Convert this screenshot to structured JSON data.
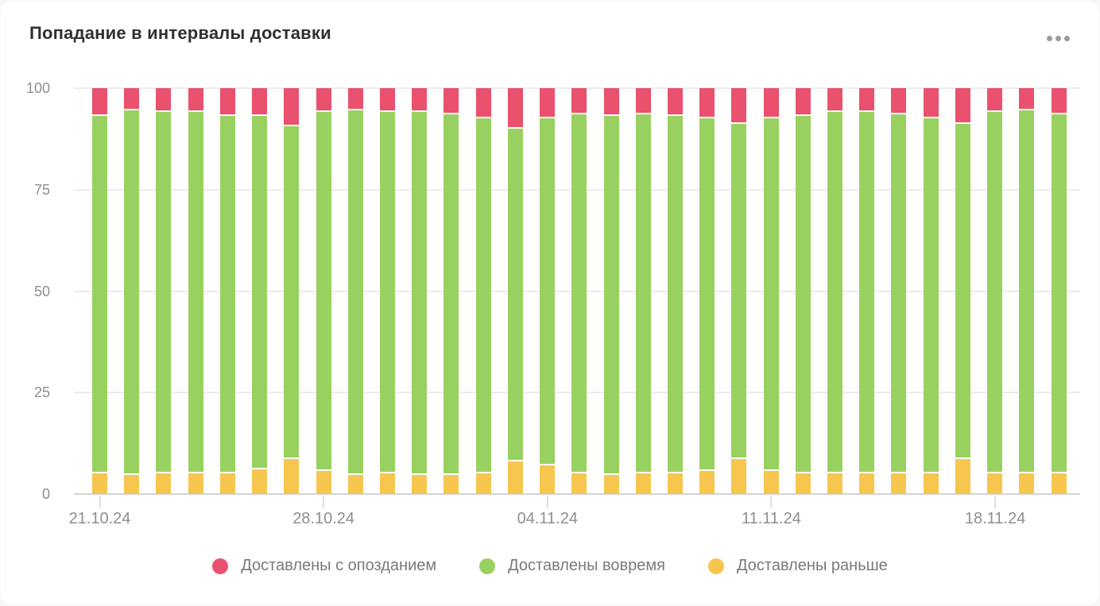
{
  "card": {
    "title": "Попадание в интервалы доставки"
  },
  "menu": {
    "icon": "ellipsis-menu-icon"
  },
  "colors": {
    "late": "#e9516f",
    "on_time": "#99d160",
    "early": "#f6c64f",
    "grid": "#ebebeb",
    "axis_line": "#d5d5d5",
    "axis_text": "#8e8e8e",
    "legend_text": "#7a7a7a",
    "title_text": "#303030",
    "card_bg": "#ffffff",
    "page_bg": "#f7f7f7"
  },
  "legend": [
    {
      "label": "Доставлены с опозданием",
      "color": "#e9516f",
      "series_key": "late"
    },
    {
      "label": "Доставлены вовремя",
      "color": "#99d160",
      "series_key": "on_time"
    },
    {
      "label": "Доставлены раньше",
      "color": "#f6c64f",
      "series_key": "early"
    }
  ],
  "chart_data": {
    "type": "bar",
    "stacked": true,
    "title": "Попадание в интервалы доставки",
    "xlabel": "",
    "ylabel": "",
    "ylim": [
      0,
      100
    ],
    "grid": true,
    "legend_position": "bottom",
    "y_ticks": [
      100,
      75,
      50,
      25,
      0
    ],
    "x_tick_labels": [
      "21.10.24",
      "28.10.24",
      "04.11.24",
      "11.11.24",
      "18.11.24"
    ],
    "x_tick_indices": [
      0,
      7,
      14,
      21,
      28
    ],
    "categories": [
      "21.10.24",
      "22.10.24",
      "23.10.24",
      "24.10.24",
      "25.10.24",
      "26.10.24",
      "27.10.24",
      "28.10.24",
      "29.10.24",
      "30.10.24",
      "31.10.24",
      "01.11.24",
      "02.11.24",
      "03.11.24",
      "04.11.24",
      "05.11.24",
      "06.11.24",
      "07.11.24",
      "08.11.24",
      "09.11.24",
      "10.11.24",
      "11.11.24",
      "12.11.24",
      "13.11.24",
      "14.11.24",
      "15.11.24",
      "16.11.24",
      "17.11.24",
      "18.11.24",
      "19.11.24",
      "20.11.24"
    ],
    "series": [
      {
        "name": "Доставлены раньше",
        "key": "early",
        "color": "#f6c64f",
        "stack_order": 1,
        "values": [
          5.5,
          5,
          5.5,
          5.5,
          5.5,
          6.5,
          9,
          6,
          5,
          5.5,
          5,
          5,
          5.5,
          8.5,
          7.5,
          5.5,
          5,
          5.5,
          5.5,
          6,
          9,
          6,
          5.5,
          5.5,
          5.5,
          5.5,
          5.5,
          9,
          5.5,
          5.5,
          5.5
        ]
      },
      {
        "name": "Доставлены вовремя",
        "key": "on_time",
        "color": "#99d160",
        "stack_order": 2,
        "values": [
          88,
          90,
          89,
          89,
          88,
          87,
          82,
          88.5,
          90,
          89,
          89.5,
          89,
          87.5,
          82,
          85.5,
          88.5,
          88.5,
          88.5,
          88,
          87,
          82.5,
          87,
          88,
          89,
          89,
          88.5,
          87.5,
          82.5,
          89,
          89.5,
          88.5
        ]
      },
      {
        "name": "Доставлены с опозданием",
        "key": "late",
        "color": "#e9516f",
        "stack_order": 3,
        "values": [
          6.5,
          5,
          5.5,
          5.5,
          6.5,
          6.5,
          9,
          5.5,
          5,
          5.5,
          5.5,
          6,
          7,
          9.5,
          7,
          6,
          6.5,
          6,
          6.5,
          7,
          8.5,
          7,
          6.5,
          5.5,
          5.5,
          6,
          7,
          8.5,
          5.5,
          5,
          6
        ]
      }
    ]
  }
}
